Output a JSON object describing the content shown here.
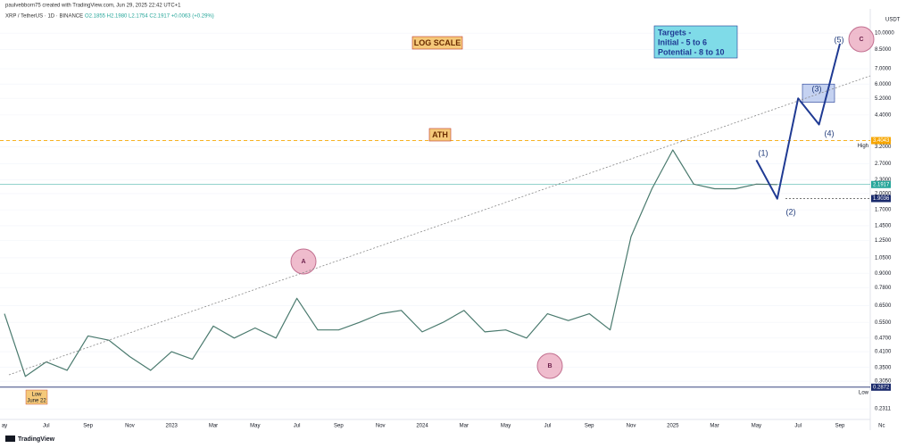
{
  "header": {
    "author": "paulvebborn75 created with TradingView.com, Jun 29, 2025 22:42 UTC+1",
    "symbol": "XRP / TetherUS · 1D · BINANCE",
    "ohlc": "O2.1855 H2.1980 L2.1754 C2.1917 +0.0063 (+0.29%)",
    "currency": "USDT",
    "footer": "TradingView"
  },
  "chart_data": {
    "type": "line",
    "log_scale": true,
    "grid": true,
    "color": "#4a7a6e",
    "projection_color": "#1f3a93",
    "categories": [
      "ay",
      null,
      "Jul",
      null,
      "Sep",
      null,
      "Nov",
      null,
      "2023",
      null,
      "Mar",
      null,
      "May",
      null,
      "Jul",
      null,
      "Sep",
      null,
      "Nov",
      null,
      "2024",
      null,
      "Mar",
      null,
      "May",
      null,
      "Jul",
      null,
      "Sep",
      null,
      "Nov",
      null,
      "2025",
      null,
      "Mar",
      null,
      "May",
      null,
      "Jul",
      null,
      "Sep",
      null,
      "Nc"
    ],
    "values": [
      0.6,
      0.32,
      0.37,
      0.34,
      0.48,
      0.46,
      0.39,
      0.34,
      0.41,
      0.38,
      0.53,
      0.47,
      0.52,
      0.47,
      0.7,
      0.51,
      0.51,
      0.55,
      0.6,
      0.62,
      0.5,
      0.55,
      0.62,
      0.5,
      0.51,
      0.47,
      0.6,
      0.56,
      0.6,
      0.51,
      1.3,
      2.1,
      3.1,
      2.2,
      2.1,
      2.1,
      2.2,
      2.19,
      null,
      null,
      null,
      null,
      null
    ],
    "projection_values": [
      null,
      null,
      null,
      null,
      null,
      null,
      null,
      null,
      null,
      null,
      null,
      null,
      null,
      null,
      null,
      null,
      null,
      null,
      null,
      null,
      null,
      null,
      null,
      null,
      null,
      null,
      null,
      null,
      null,
      null,
      null,
      null,
      null,
      null,
      null,
      null,
      2.8,
      1.9,
      5.2,
      4.0,
      9.0,
      null,
      null
    ],
    "ylim": [
      0.19,
      12.3
    ],
    "yticks": [
      {
        "value": 10,
        "label": "10.0000"
      },
      {
        "value": 8.5,
        "label": "8.5000"
      },
      {
        "value": 7,
        "label": "7.0000"
      },
      {
        "value": 6,
        "label": "6.0000"
      },
      {
        "value": 5.2,
        "label": "5.2000"
      },
      {
        "value": 4.4,
        "label": "4.4000"
      },
      {
        "value": 3.4,
        "label": "3.4000"
      },
      {
        "value": 3.2,
        "label": "3.2000"
      },
      {
        "value": 2.7,
        "label": "2.7000"
      },
      {
        "value": 2.3,
        "label": "2.3000"
      },
      {
        "value": 2,
        "label": "2.0000"
      },
      {
        "value": 1.7,
        "label": "1.7000"
      },
      {
        "value": 1.45,
        "label": "1.4500"
      },
      {
        "value": 1.25,
        "label": "1.2500"
      },
      {
        "value": 1.05,
        "label": "1.0500"
      },
      {
        "value": 0.9,
        "label": "0.9000"
      },
      {
        "value": 0.78,
        "label": "0.7800"
      },
      {
        "value": 0.65,
        "label": "0.6500"
      },
      {
        "value": 0.55,
        "label": "0.5500"
      },
      {
        "value": 0.47,
        "label": "0.4700"
      },
      {
        "value": 0.41,
        "label": "0.4100"
      },
      {
        "value": 0.35,
        "label": "0.3500"
      },
      {
        "value": 0.305,
        "label": "0.3050"
      },
      0.2311
    ],
    "levels": [
      {
        "name": "High",
        "value": 3.4043,
        "color": "#f7a600"
      },
      {
        "value": 2.1917,
        "color": "#26a69a"
      },
      {
        "value": 1.9036,
        "color": "#1a2a6c"
      },
      {
        "name": "Low",
        "value": 0.2872,
        "color": "#1a2a6c"
      }
    ],
    "target_zone": [
      5,
      6
    ],
    "annotations": {
      "log_scale": "LOG SCALE",
      "ath": "ATH",
      "targets": [
        "Targets -",
        "Initial - 5 to 6",
        "Potential - 8 to 10"
      ],
      "low": [
        "Low",
        "June 22"
      ],
      "waves": [
        "(1)",
        "(2)",
        "(3)",
        "(4)",
        "(5)"
      ],
      "circles": [
        "A",
        "B",
        "C"
      ]
    }
  }
}
